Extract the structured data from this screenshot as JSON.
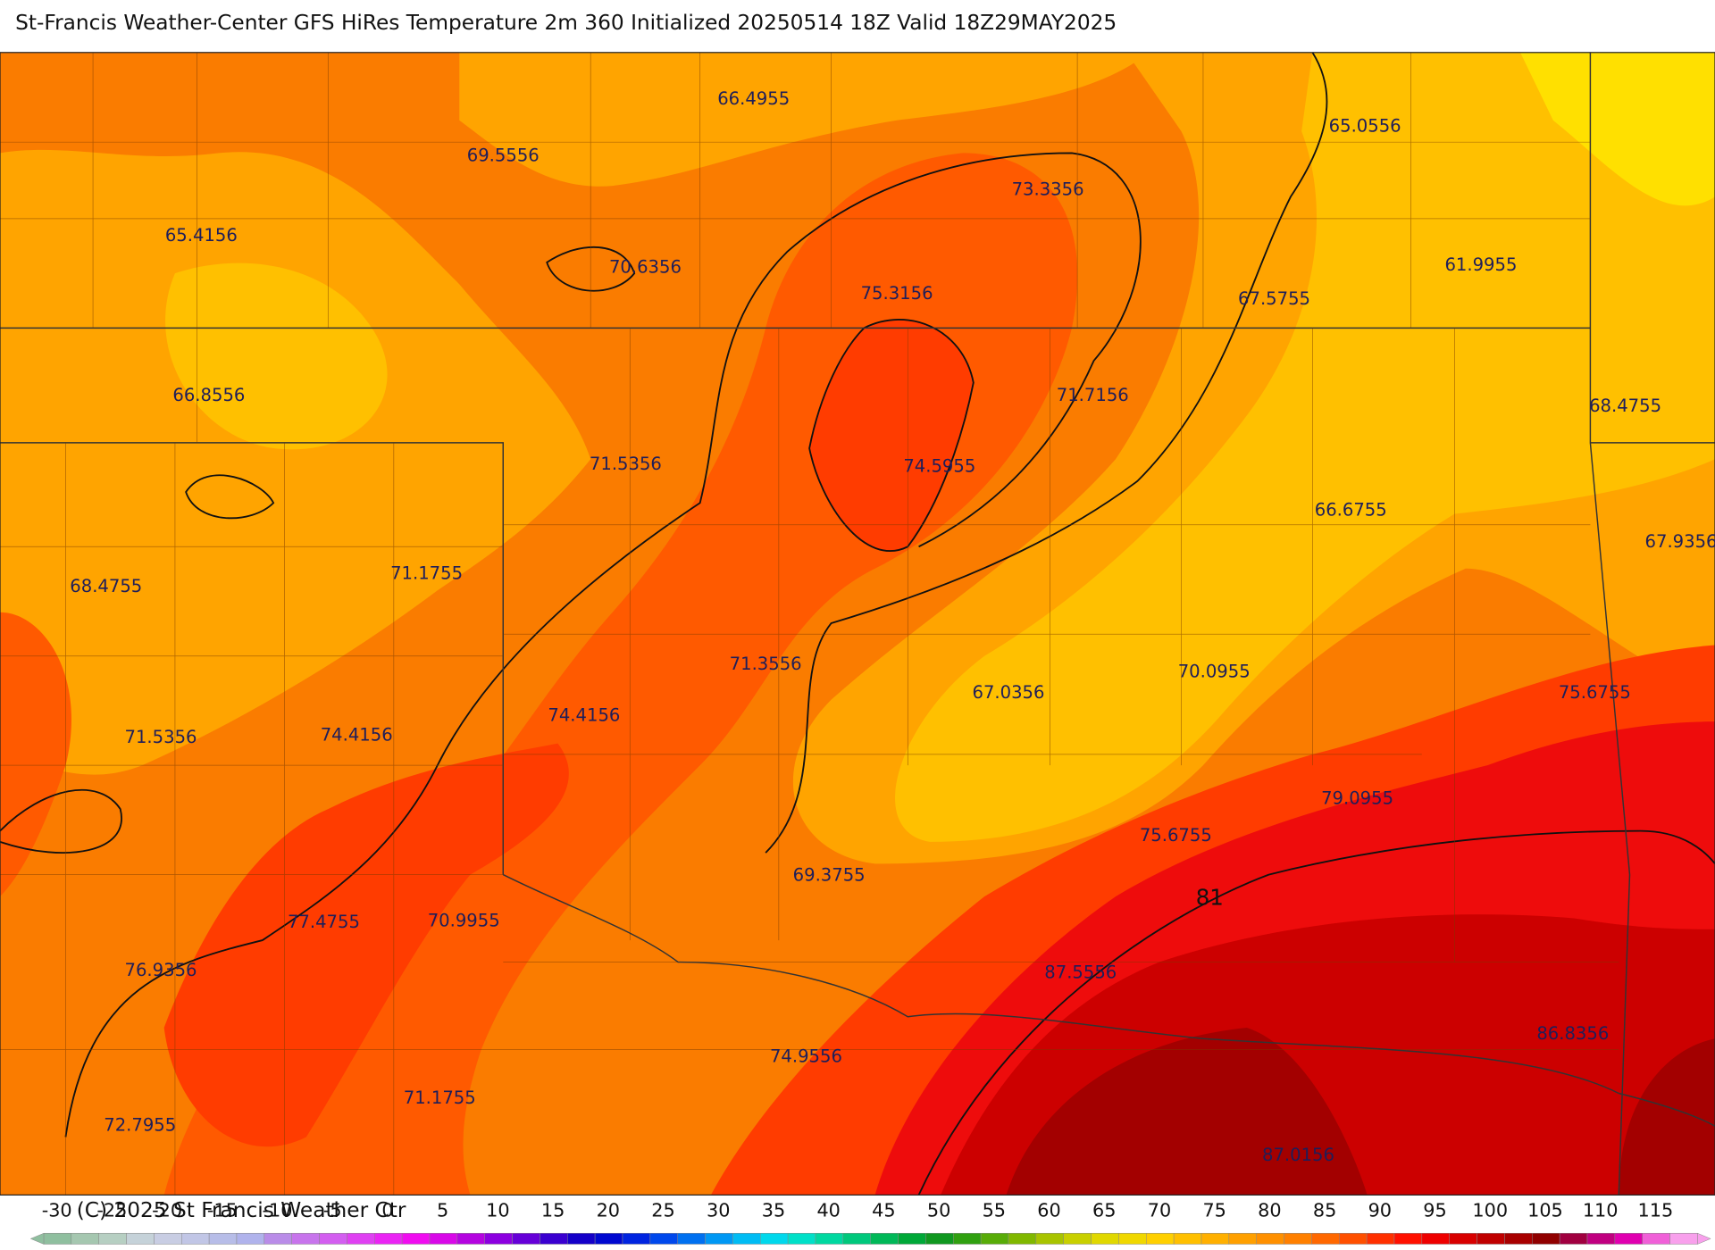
{
  "header": {
    "title": "St-Francis Weather-Center GFS HiRes Temperature 2m  360 Initialized 20250514 18Z Valid 18Z29MAY2025"
  },
  "map": {
    "contour_labels": [
      "66.4955",
      "65.0556",
      "69.5556",
      "73.3356",
      "65.4156",
      "70.6356",
      "75.3156",
      "61.9955",
      "67.5755",
      "66.8556",
      "71.7156",
      "68.4755",
      "71.5356",
      "74.5955",
      "66.6755",
      "67.9356",
      "68.4755",
      "71.1755",
      "71.3556",
      "67.0356",
      "70.0955",
      "75.6755",
      "74.4156",
      "71.5356",
      "74.4156",
      "79.0955",
      "75.6755",
      "69.3755",
      "81",
      "77.4755",
      "70.9955",
      "76.9356",
      "87.5556",
      "86.8356",
      "74.9556",
      "71.1755",
      "87.0156",
      "72.7955"
    ],
    "copyright": "(C) 2025 St Francis Weather Ctr"
  },
  "colorbar": {
    "ticks": [
      -30,
      -25,
      -20,
      -15,
      -10,
      -5,
      0,
      5,
      10,
      15,
      20,
      25,
      30,
      35,
      40,
      45,
      50,
      55,
      60,
      65,
      70,
      75,
      80,
      85,
      90,
      95,
      100,
      105,
      110,
      115
    ]
  }
}
